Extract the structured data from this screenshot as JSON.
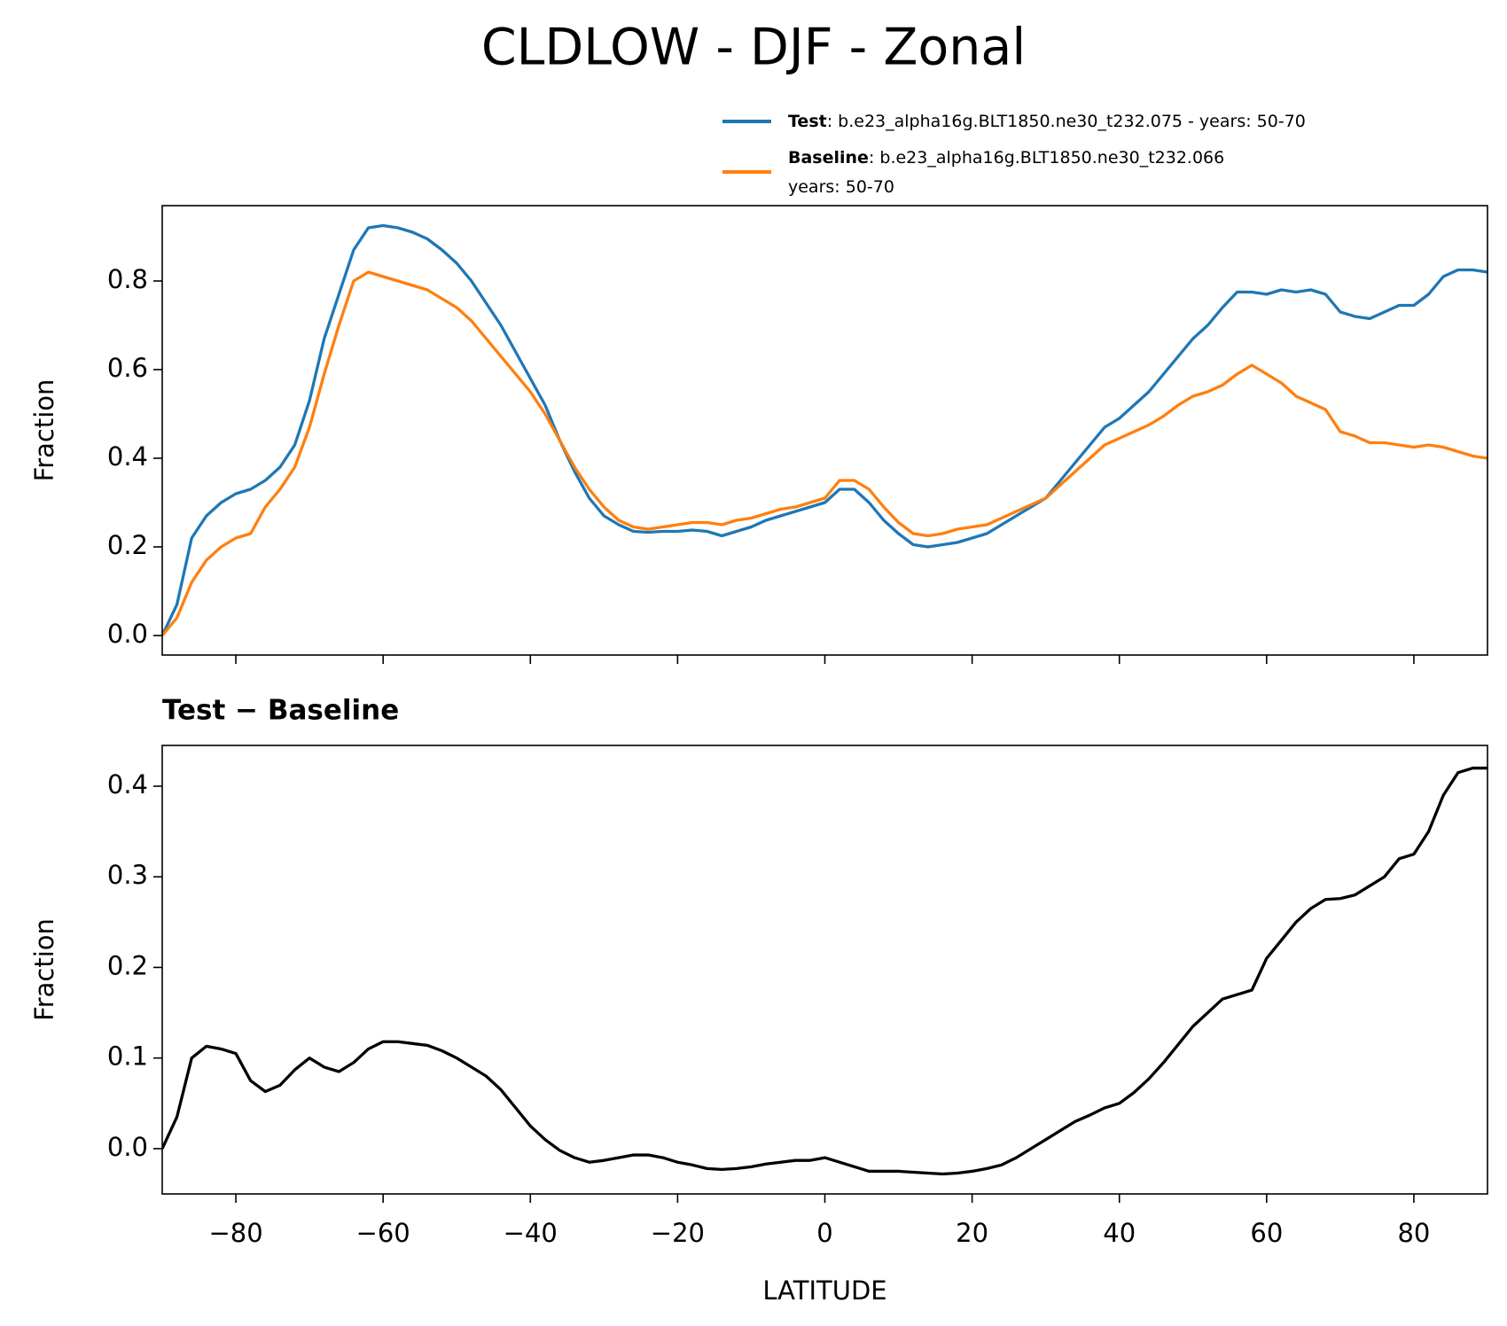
{
  "title": "CLDLOW - DJF - Zonal",
  "chart_data": [
    {
      "type": "line",
      "ylabel": "Fraction",
      "x": [
        -90,
        -88,
        -86,
        -84,
        -82,
        -80,
        -78,
        -76,
        -74,
        -72,
        -70,
        -68,
        -66,
        -64,
        -62,
        -60,
        -58,
        -56,
        -54,
        -52,
        -50,
        -48,
        -46,
        -44,
        -42,
        -40,
        -38,
        -36,
        -34,
        -32,
        -30,
        -28,
        -26,
        -24,
        -22,
        -20,
        -18,
        -16,
        -14,
        -12,
        -10,
        -8,
        -6,
        -4,
        -2,
        0,
        2,
        4,
        6,
        8,
        10,
        12,
        14,
        16,
        18,
        20,
        22,
        24,
        26,
        28,
        30,
        32,
        34,
        36,
        38,
        40,
        42,
        44,
        46,
        48,
        50,
        52,
        54,
        56,
        58,
        60,
        62,
        64,
        66,
        68,
        70,
        72,
        74,
        76,
        78,
        80,
        82,
        84,
        86,
        88,
        90
      ],
      "xlim": [
        -90,
        90
      ],
      "xticks": [
        -80,
        -60,
        -40,
        -20,
        0,
        20,
        40,
        60,
        80
      ],
      "ylim": [
        -0.044,
        0.97
      ],
      "yticks": [
        {
          "value": 0,
          "label": "0.0"
        },
        {
          "value": 0.2,
          "label": "0.2"
        },
        {
          "value": 0.4,
          "label": "0.4"
        },
        {
          "value": 0.6,
          "label": "0.6"
        },
        {
          "value": 0.8,
          "label": "0.8"
        }
      ],
      "series": [
        {
          "name": "Test",
          "description": [
            ": b.e23_alpha16g.BLT1850.ne30_t232.075 - years: 50-70"
          ],
          "color": "#1f77b4",
          "values": [
            0.0,
            0.07,
            0.22,
            0.27,
            0.3,
            0.32,
            0.33,
            0.35,
            0.38,
            0.43,
            0.53,
            0.67,
            0.77,
            0.87,
            0.92,
            0.925,
            0.92,
            0.91,
            0.895,
            0.87,
            0.84,
            0.8,
            0.75,
            0.7,
            0.64,
            0.58,
            0.52,
            0.44,
            0.37,
            0.31,
            0.27,
            0.25,
            0.235,
            0.233,
            0.235,
            0.235,
            0.238,
            0.235,
            0.225,
            0.235,
            0.245,
            0.26,
            0.27,
            0.28,
            0.29,
            0.3,
            0.33,
            0.33,
            0.3,
            0.26,
            0.23,
            0.205,
            0.2,
            0.205,
            0.21,
            0.22,
            0.23,
            0.25,
            0.27,
            0.29,
            0.31,
            0.35,
            0.39,
            0.43,
            0.47,
            0.49,
            0.52,
            0.55,
            0.59,
            0.63,
            0.67,
            0.7,
            0.74,
            0.775,
            0.775,
            0.77,
            0.78,
            0.775,
            0.78,
            0.77,
            0.73,
            0.72,
            0.715,
            0.73,
            0.745,
            0.745,
            0.77,
            0.81,
            0.825,
            0.825,
            0.82
          ]
        },
        {
          "name": "Baseline",
          "description": [
            ": b.e23_alpha16g.BLT1850.ne30_t232.066",
            "years: 50-70"
          ],
          "color": "#ff7f0e",
          "values": [
            0.0,
            0.04,
            0.12,
            0.17,
            0.2,
            0.22,
            0.23,
            0.29,
            0.33,
            0.38,
            0.47,
            0.59,
            0.7,
            0.8,
            0.82,
            0.81,
            0.8,
            0.79,
            0.78,
            0.76,
            0.74,
            0.71,
            0.67,
            0.63,
            0.59,
            0.55,
            0.5,
            0.44,
            0.38,
            0.33,
            0.29,
            0.26,
            0.245,
            0.24,
            0.245,
            0.25,
            0.255,
            0.255,
            0.25,
            0.26,
            0.265,
            0.275,
            0.285,
            0.29,
            0.3,
            0.31,
            0.35,
            0.35,
            0.33,
            0.29,
            0.255,
            0.23,
            0.225,
            0.23,
            0.24,
            0.245,
            0.25,
            0.265,
            0.28,
            0.295,
            0.31,
            0.34,
            0.37,
            0.4,
            0.43,
            0.445,
            0.46,
            0.475,
            0.495,
            0.52,
            0.54,
            0.55,
            0.565,
            0.59,
            0.61,
            0.59,
            0.57,
            0.54,
            0.525,
            0.51,
            0.46,
            0.45,
            0.435,
            0.435,
            0.43,
            0.425,
            0.43,
            0.425,
            0.415,
            0.405,
            0.4
          ]
        }
      ]
    },
    {
      "type": "line",
      "title": "Test − Baseline",
      "xlabel": "LATITUDE",
      "ylabel": "Fraction",
      "x": [
        -90,
        -88,
        -86,
        -84,
        -82,
        -80,
        -78,
        -76,
        -74,
        -72,
        -70,
        -68,
        -66,
        -64,
        -62,
        -60,
        -58,
        -56,
        -54,
        -52,
        -50,
        -48,
        -46,
        -44,
        -42,
        -40,
        -38,
        -36,
        -34,
        -32,
        -30,
        -28,
        -26,
        -24,
        -22,
        -20,
        -18,
        -16,
        -14,
        -12,
        -10,
        -8,
        -6,
        -4,
        -2,
        0,
        2,
        4,
        6,
        8,
        10,
        12,
        14,
        16,
        18,
        20,
        22,
        24,
        26,
        28,
        30,
        32,
        34,
        36,
        38,
        40,
        42,
        44,
        46,
        48,
        50,
        52,
        54,
        56,
        58,
        60,
        62,
        64,
        66,
        68,
        70,
        72,
        74,
        76,
        78,
        80,
        82,
        84,
        86,
        88,
        90
      ],
      "xlim": [
        -90,
        90
      ],
      "xticks": [
        {
          "value": -80,
          "label": "−80"
        },
        {
          "value": -60,
          "label": "−60"
        },
        {
          "value": -40,
          "label": "−40"
        },
        {
          "value": -20,
          "label": "−20"
        },
        0,
        20,
        40,
        60,
        80
      ],
      "ylim": [
        -0.05,
        0.445
      ],
      "yticks": [
        {
          "value": 0,
          "label": "0.0"
        },
        0.1,
        0.2,
        0.3,
        0.4
      ],
      "color": "#000000",
      "values": [
        0.0,
        0.035,
        0.1,
        0.113,
        0.11,
        0.105,
        0.075,
        0.063,
        0.07,
        0.087,
        0.1,
        0.09,
        0.085,
        0.095,
        0.11,
        0.118,
        0.118,
        0.116,
        0.114,
        0.108,
        0.1,
        0.09,
        0.08,
        0.065,
        0.045,
        0.025,
        0.01,
        -0.002,
        -0.01,
        -0.015,
        -0.013,
        -0.01,
        -0.007,
        -0.007,
        -0.01,
        -0.015,
        -0.018,
        -0.022,
        -0.023,
        -0.022,
        -0.02,
        -0.017,
        -0.015,
        -0.013,
        -0.013,
        -0.01,
        -0.015,
        -0.02,
        -0.025,
        -0.025,
        -0.025,
        -0.026,
        -0.027,
        -0.028,
        -0.027,
        -0.025,
        -0.022,
        -0.018,
        -0.01,
        0.0,
        0.01,
        0.02,
        0.03,
        0.037,
        0.045,
        0.05,
        0.062,
        0.077,
        0.095,
        0.115,
        0.135,
        0.15,
        0.165,
        0.17,
        0.175,
        0.21,
        0.23,
        0.25,
        0.265,
        0.275,
        0.276,
        0.28,
        0.29,
        0.3,
        0.32,
        0.325,
        0.35,
        0.39,
        0.415,
        0.42,
        0.42
      ]
    }
  ]
}
